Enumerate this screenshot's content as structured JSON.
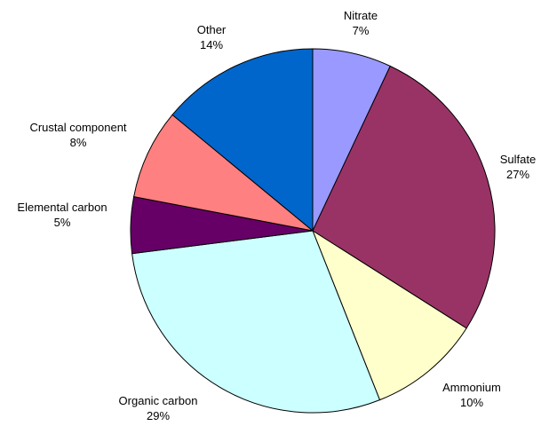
{
  "chart_data": {
    "type": "pie",
    "start_angle_deg": 0,
    "direction": "clockwise",
    "slices": [
      {
        "label": "Nitrate",
        "value": 7,
        "value_label": "7%",
        "color": "#9999ff"
      },
      {
        "label": "Sulfate",
        "value": 27,
        "value_label": "27%",
        "color": "#993366"
      },
      {
        "label": "Ammonium",
        "value": 10,
        "value_label": "10%",
        "color": "#ffffcc"
      },
      {
        "label": "Organic carbon",
        "value": 29,
        "value_label": "29%",
        "color": "#ccffff"
      },
      {
        "label": "Elemental carbon",
        "value": 5,
        "value_label": "5%",
        "color": "#660066"
      },
      {
        "label": "Crustal component",
        "value": 8,
        "value_label": "8%",
        "color": "#ff8080"
      },
      {
        "label": "Other",
        "value": 14,
        "value_label": "14%",
        "color": "#0066cc"
      }
    ]
  }
}
